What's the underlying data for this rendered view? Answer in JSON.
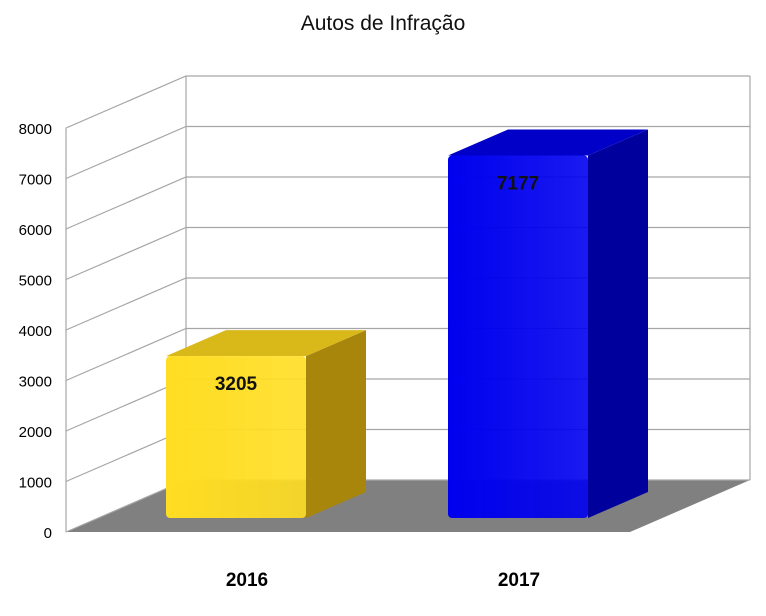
{
  "chart_data": {
    "type": "bar",
    "title": "Autos de Infração",
    "categories": [
      "2016",
      "2017"
    ],
    "values": [
      3205,
      7177
    ],
    "data_labels": [
      "3205",
      "7177"
    ],
    "ylim": [
      0,
      8000
    ],
    "y_ticks": [
      0,
      1000,
      2000,
      3000,
      4000,
      5000,
      6000,
      7000,
      8000
    ],
    "grid": true,
    "three_d": true,
    "colors": {
      "2016": {
        "front": "#ffdd22",
        "side": "#a8860c",
        "top": "#d9b81a"
      },
      "2017": {
        "front": "#0000ee",
        "side": "#00009c",
        "top": "#0000c8"
      },
      "floor": "#808080",
      "grid": "#a6a6a6"
    }
  }
}
